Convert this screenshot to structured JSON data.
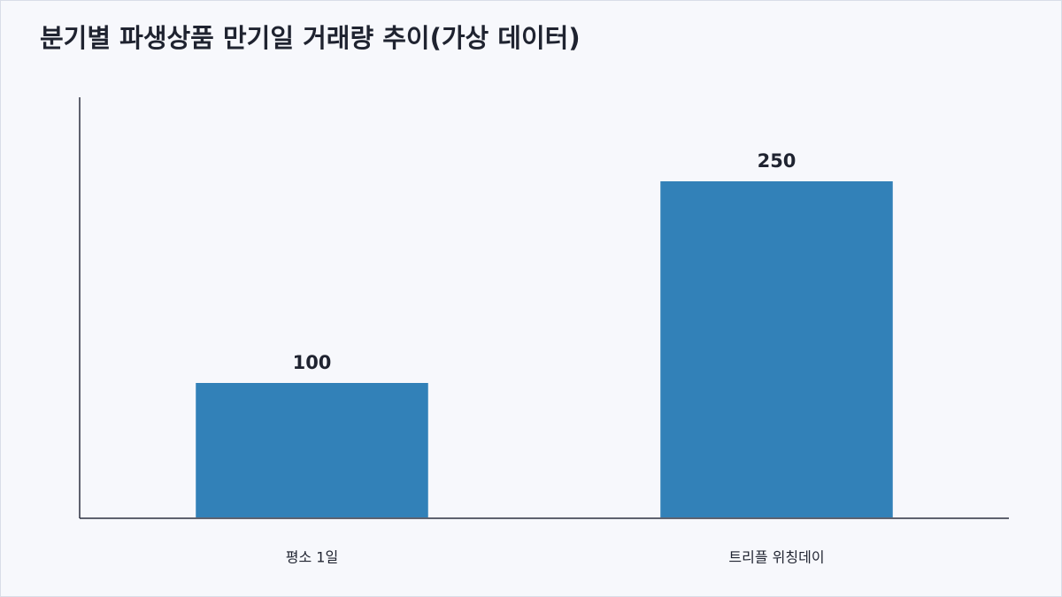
{
  "chart_data": {
    "type": "bar",
    "title": "분기별 파생상품 만기일 거래량 추이(가상 데이터)",
    "categories": [
      "평소 1일",
      "트리플 위칭데이"
    ],
    "values": [
      100,
      250
    ],
    "color": "#3281b8",
    "ylim": [
      0,
      312.5
    ]
  }
}
